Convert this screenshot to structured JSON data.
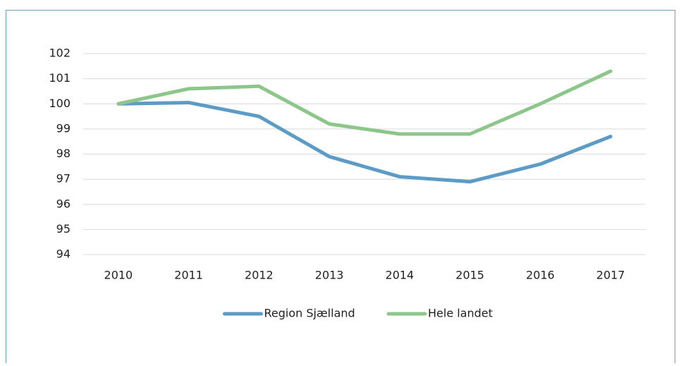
{
  "chart_data": {
    "type": "line",
    "categories": [
      "2010",
      "2011",
      "2012",
      "2013",
      "2014",
      "2015",
      "2016",
      "2017"
    ],
    "series": [
      {
        "name": "Region Sjælland",
        "color": "#5b9bc6",
        "values": [
          100,
          100.05,
          99.5,
          97.9,
          97.1,
          96.9,
          97.6,
          98.7
        ]
      },
      {
        "name": "Hele landet",
        "color": "#8cc68a",
        "values": [
          100,
          100.6,
          100.7,
          99.2,
          98.8,
          98.8,
          100.0,
          101.3
        ]
      }
    ],
    "ylim": [
      94,
      102
    ],
    "yticks": [
      94,
      95,
      96,
      97,
      98,
      99,
      100,
      101,
      102
    ],
    "grid": true,
    "legend": "bottom"
  }
}
